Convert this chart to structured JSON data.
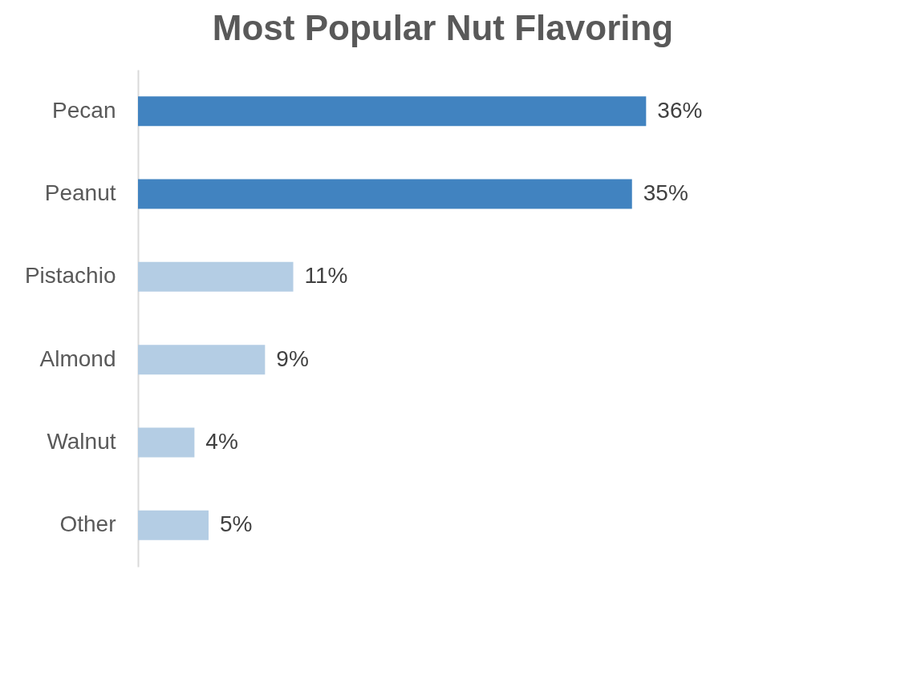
{
  "chart_data": {
    "type": "bar",
    "orientation": "horizontal",
    "title": "Most Popular Nut Flavoring",
    "categories": [
      "Pecan",
      "Peanut",
      "Pistachio",
      "Almond",
      "Walnut",
      "Other"
    ],
    "values": [
      36,
      35,
      11,
      9,
      4,
      5
    ],
    "colors": [
      "#4183c0",
      "#4183c0",
      "#b4cde4",
      "#b4cde4",
      "#b4cde4",
      "#b4cde4"
    ],
    "value_labels": [
      "36%",
      "35%",
      "11%",
      "9%",
      "4%",
      "5%"
    ],
    "grid": false
  }
}
